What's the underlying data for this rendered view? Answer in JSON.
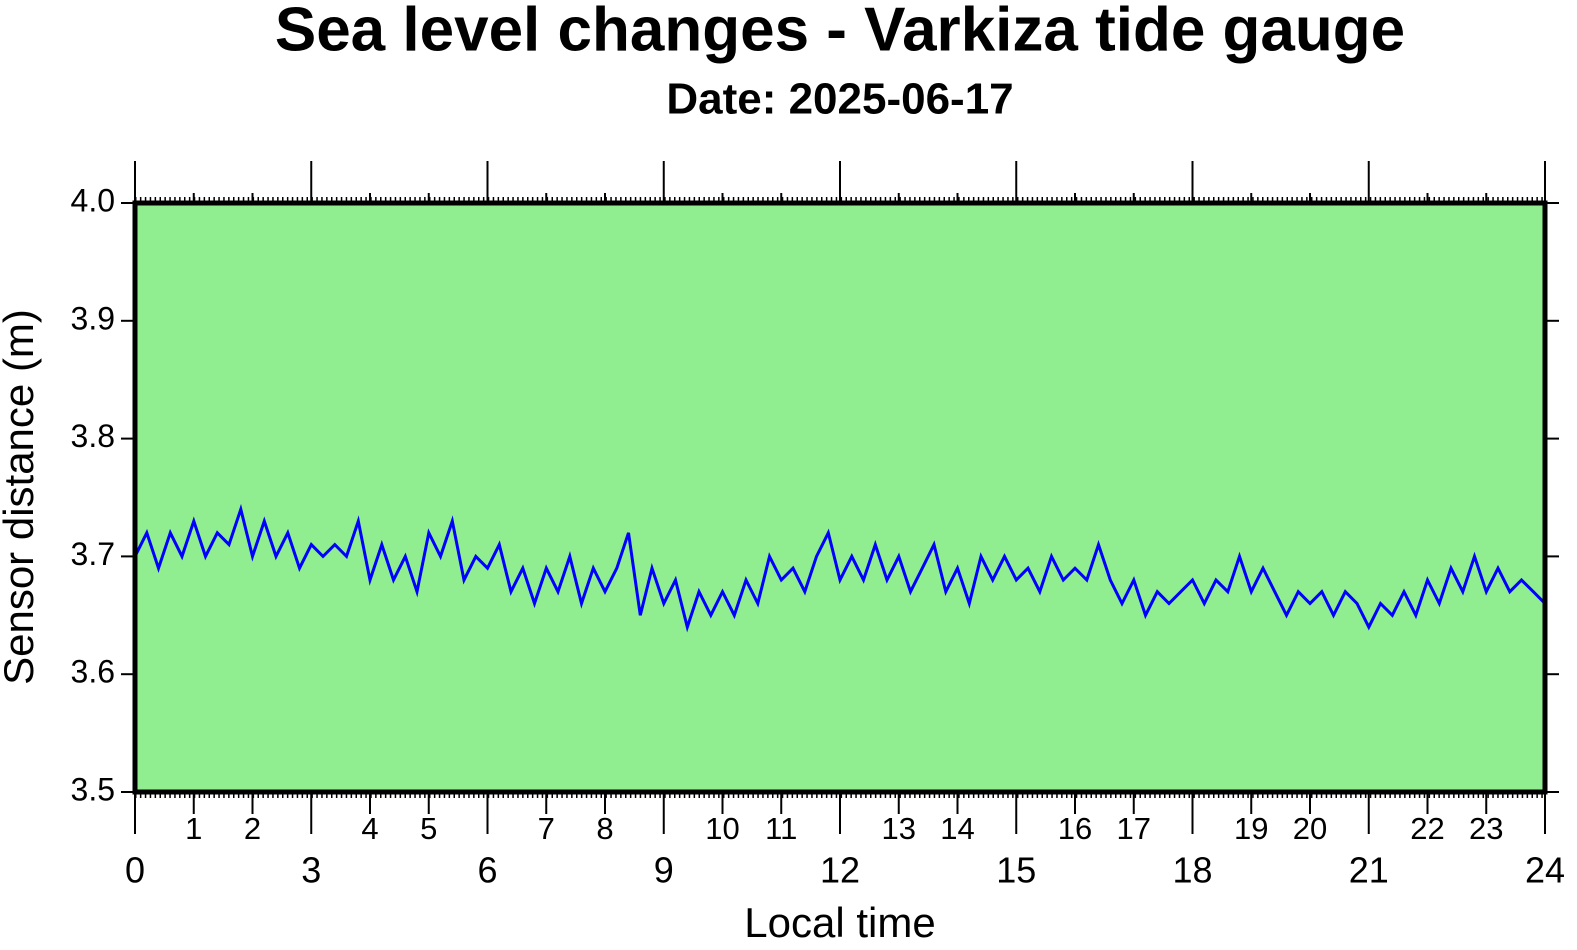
{
  "chart_data": {
    "type": "line",
    "title": "Sea level changes - Varkiza tide gauge",
    "subtitle": "Date: 2025-06-17",
    "xlabel": "Local time",
    "ylabel": "Sensor distance (m)",
    "background": "#90ee90",
    "xlim": [
      0,
      24
    ],
    "ylim": [
      3.5,
      4.0
    ],
    "xticks": [
      0,
      1,
      2,
      3,
      4,
      5,
      6,
      7,
      8,
      9,
      10,
      11,
      12,
      13,
      14,
      15,
      16,
      17,
      18,
      19,
      20,
      21,
      22,
      23,
      24
    ],
    "yticks": [
      {
        "value": 3.5,
        "label": "3.5"
      },
      3.6,
      3.7,
      3.8,
      3.9,
      {
        "value": 4.0,
        "label": "4.0"
      }
    ],
    "series": [
      {
        "color": "#0000ff",
        "x": [
          0,
          0.2,
          0.4,
          0.6,
          0.8,
          1,
          1.2,
          1.4,
          1.6,
          1.8,
          2,
          2.2,
          2.4,
          2.6,
          2.8,
          3,
          3.2,
          3.4,
          3.6,
          3.8,
          4,
          4.2,
          4.4,
          4.6,
          4.8,
          5,
          5.2,
          5.4,
          5.6,
          5.8,
          6,
          6.2,
          6.4,
          6.6,
          6.8,
          7,
          7.2,
          7.4,
          7.6,
          7.8,
          8,
          8.2,
          8.4,
          8.6,
          8.8,
          9,
          9.2,
          9.4,
          9.6,
          9.8,
          10,
          10.2,
          10.4,
          10.6,
          10.8,
          11,
          11.2,
          11.4,
          11.6,
          11.8,
          12,
          12.2,
          12.4,
          12.6,
          12.8,
          13,
          13.2,
          13.4,
          13.6,
          13.8,
          14,
          14.2,
          14.4,
          14.6,
          14.8,
          15,
          15.2,
          15.4,
          15.6,
          15.8,
          16,
          16.2,
          16.4,
          16.6,
          16.8,
          17,
          17.2,
          17.4,
          17.6,
          17.8,
          18,
          18.2,
          18.4,
          18.6,
          18.8,
          19,
          19.2,
          19.4,
          19.6,
          19.8,
          20,
          20.2,
          20.4,
          20.6,
          20.8,
          21,
          21.2,
          21.4,
          21.6,
          21.8,
          22,
          22.2,
          22.4,
          22.6,
          22.8,
          23,
          23.2,
          23.4,
          23.6,
          23.8,
          24
        ],
        "values": [
          3.7,
          3.72,
          3.69,
          3.72,
          3.7,
          3.73,
          3.7,
          3.72,
          3.71,
          3.74,
          3.7,
          3.73,
          3.7,
          3.72,
          3.69,
          3.71,
          3.7,
          3.71,
          3.7,
          3.73,
          3.68,
          3.71,
          3.68,
          3.7,
          3.67,
          3.72,
          3.7,
          3.73,
          3.68,
          3.7,
          3.69,
          3.71,
          3.67,
          3.69,
          3.66,
          3.69,
          3.67,
          3.7,
          3.66,
          3.69,
          3.67,
          3.69,
          3.72,
          3.65,
          3.69,
          3.66,
          3.68,
          3.64,
          3.67,
          3.65,
          3.67,
          3.65,
          3.68,
          3.66,
          3.7,
          3.68,
          3.69,
          3.67,
          3.7,
          3.72,
          3.68,
          3.7,
          3.68,
          3.71,
          3.68,
          3.7,
          3.67,
          3.69,
          3.71,
          3.67,
          3.69,
          3.66,
          3.7,
          3.68,
          3.7,
          3.68,
          3.69,
          3.67,
          3.7,
          3.68,
          3.69,
          3.68,
          3.71,
          3.68,
          3.66,
          3.68,
          3.65,
          3.67,
          3.66,
          3.67,
          3.68,
          3.66,
          3.68,
          3.67,
          3.7,
          3.67,
          3.69,
          3.67,
          3.65,
          3.67,
          3.66,
          3.67,
          3.65,
          3.67,
          3.66,
          3.64,
          3.66,
          3.65,
          3.67,
          3.65,
          3.68,
          3.66,
          3.69,
          3.67,
          3.7,
          3.67,
          3.69,
          3.67,
          3.68,
          3.67,
          3.66
        ]
      }
    ]
  }
}
